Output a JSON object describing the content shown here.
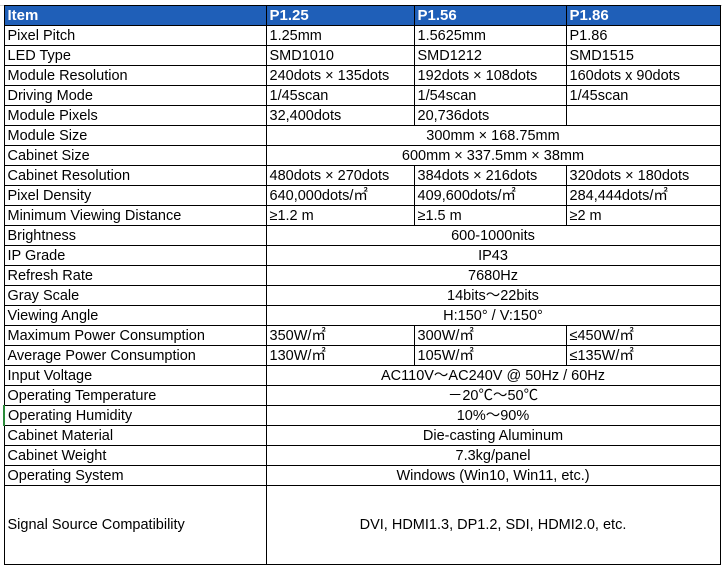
{
  "header": {
    "item": "Item",
    "p125": "P1.25",
    "p156": "P1.56",
    "p186": "P1.86"
  },
  "rows": {
    "pixel_pitch": {
      "label": "Pixel Pitch",
      "p125": "1.25mm",
      "p156": "1.5625mm",
      "p186": "P1.86"
    },
    "led_type": {
      "label": "LED Type",
      "p125": "SMD1010",
      "p156": "SMD1212",
      "p186": "SMD1515"
    },
    "module_resolution": {
      "label": "Module Resolution",
      "p125": "240dots × 135dots",
      "p156": "192dots × 108dots",
      "p186": "160dots x 90dots"
    },
    "driving_mode": {
      "label": "Driving Mode",
      "p125": "1/45scan",
      "p156": "1/54scan",
      "p186": "1/45scan"
    },
    "module_pixels": {
      "label": "Module Pixels",
      "p125": "32,400dots",
      "p156": "20,736dots",
      "p186": ""
    },
    "module_size": {
      "label": "Module Size",
      "all": "300mm × 168.75mm"
    },
    "cabinet_size": {
      "label": "Cabinet Size",
      "all": "600mm × 337.5mm × 38mm"
    },
    "cabinet_resolution": {
      "label": "Cabinet Resolution",
      "p125": "480dots × 270dots",
      "p156": "384dots × 216dots",
      "p186": "320dots × 180dots"
    },
    "pixel_density": {
      "label": "Pixel Density",
      "p125": "640,000dots/㎡",
      "p156": "409,600dots/㎡",
      "p186": "284,444dots/㎡"
    },
    "min_viewing_distance": {
      "label": "Minimum Viewing Distance",
      "p125": "≥1.2 m",
      "p156": "≥1.5 m",
      "p186": "≥2 m"
    },
    "brightness": {
      "label": "Brightness",
      "all": "600-1000nits"
    },
    "ip_grade": {
      "label": "IP Grade",
      "all": "IP43"
    },
    "refresh_rate": {
      "label": "Refresh Rate",
      "all": "7680Hz"
    },
    "gray_scale": {
      "label": "Gray Scale",
      "all": "14bits～22bits"
    },
    "viewing_angle": {
      "label": "Viewing Angle",
      "all": "H:150° / V:150°"
    },
    "max_power": {
      "label": "Maximum Power Consumption",
      "p125": "350W/㎡",
      "p156": "300W/㎡",
      "p186": "≤450W/㎡"
    },
    "avg_power": {
      "label": "Average Power Consumption",
      "p125": "130W/㎡",
      "p156": "105W/㎡",
      "p186": "≤135W/㎡"
    },
    "input_voltage": {
      "label": "Input Voltage",
      "all": "AC110V～AC240V @ 50Hz / 60Hz"
    },
    "operating_temperature": {
      "label": "Operating Temperature",
      "all": "－20℃～50℃"
    },
    "operating_humidity": {
      "label": "Operating Humidity",
      "all": "10%～90%"
    },
    "cabinet_material": {
      "label": "Cabinet Material",
      "all": "Die-casting Aluminum"
    },
    "cabinet_weight": {
      "label": "Cabinet Weight",
      "all": "7.3kg/panel"
    },
    "operating_system": {
      "label": "Operating System",
      "all": "Windows (Win10, Win11, etc.)"
    },
    "signal_source": {
      "label": "Signal Source Compatibility",
      "all": "DVI, HDMI1.3, DP1.2, SDI, HDMI2.0, etc."
    }
  },
  "colors": {
    "header_bg": "#1f5fb8",
    "header_text": "#ffffff",
    "grid": "#000000"
  }
}
